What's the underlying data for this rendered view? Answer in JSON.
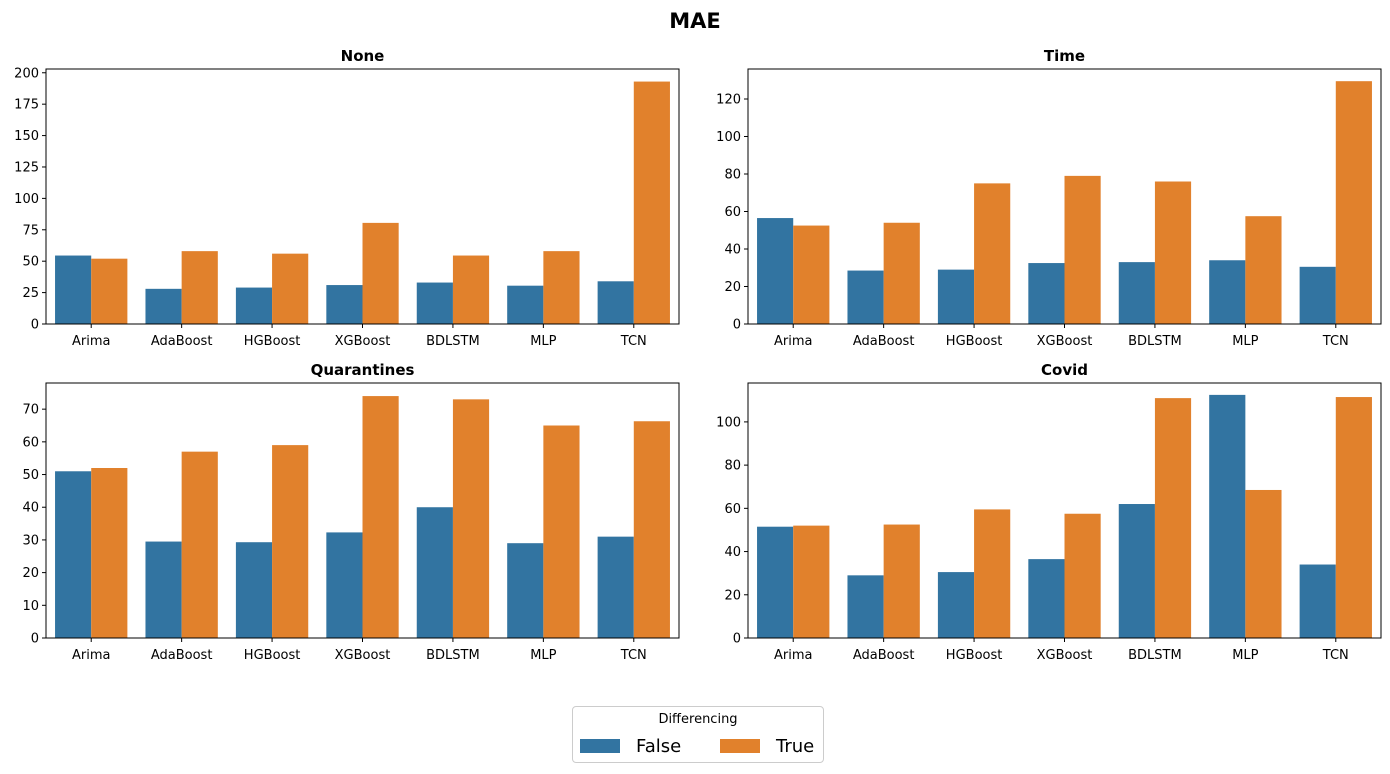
{
  "figure": {
    "title": "MAE"
  },
  "colors": {
    "false": "#3274a1",
    "true": "#e1812c"
  },
  "legend": {
    "title": "Differencing",
    "items": [
      {
        "label": "False"
      },
      {
        "label": "True"
      }
    ]
  },
  "chart_data": [
    {
      "type": "bar",
      "title": "None",
      "categories": [
        "Arima",
        "AdaBoost",
        "HGBoost",
        "XGBoost",
        "BDLSTM",
        "MLP",
        "TCN"
      ],
      "series": [
        {
          "name": "False",
          "values": [
            54.5,
            28,
            29,
            31,
            33,
            30.5,
            34
          ]
        },
        {
          "name": "True",
          "values": [
            52,
            58,
            56,
            80.5,
            54.5,
            58,
            193
          ]
        }
      ],
      "ylim": [
        0,
        203
      ],
      "yticks": [
        0,
        25,
        50,
        75,
        100,
        125,
        150,
        175,
        200
      ],
      "xlabel": "",
      "ylabel": ""
    },
    {
      "type": "bar",
      "title": "Time",
      "categories": [
        "Arima",
        "AdaBoost",
        "HGBoost",
        "XGBoost",
        "BDLSTM",
        "MLP",
        "TCN"
      ],
      "series": [
        {
          "name": "False",
          "values": [
            56.5,
            28.5,
            29,
            32.5,
            33,
            34,
            30.5
          ]
        },
        {
          "name": "True",
          "values": [
            52.5,
            54,
            75,
            79,
            76,
            57.5,
            129.5
          ]
        }
      ],
      "ylim": [
        0,
        136
      ],
      "yticks": [
        0,
        20,
        40,
        60,
        80,
        100,
        120
      ],
      "xlabel": "",
      "ylabel": ""
    },
    {
      "type": "bar",
      "title": "Quarantines",
      "categories": [
        "Arima",
        "AdaBoost",
        "HGBoost",
        "XGBoost",
        "BDLSTM",
        "MLP",
        "TCN"
      ],
      "series": [
        {
          "name": "False",
          "values": [
            51,
            29.5,
            29.3,
            32.3,
            40,
            29,
            31
          ]
        },
        {
          "name": "True",
          "values": [
            52,
            57,
            59,
            74,
            73,
            65,
            66.3
          ]
        }
      ],
      "ylim": [
        0,
        78
      ],
      "yticks": [
        0,
        10,
        20,
        30,
        40,
        50,
        60,
        70
      ],
      "xlabel": "",
      "ylabel": ""
    },
    {
      "type": "bar",
      "title": "Covid",
      "categories": [
        "Arima",
        "AdaBoost",
        "HGBoost",
        "XGBoost",
        "BDLSTM",
        "MLP",
        "TCN"
      ],
      "series": [
        {
          "name": "False",
          "values": [
            51.5,
            29,
            30.5,
            36.5,
            62,
            112.5,
            34
          ]
        },
        {
          "name": "True",
          "values": [
            52,
            52.5,
            59.5,
            57.5,
            111,
            68.5,
            111.5
          ]
        }
      ],
      "ylim": [
        0,
        118
      ],
      "yticks": [
        0,
        20,
        40,
        60,
        80,
        100
      ],
      "xlabel": "",
      "ylabel": ""
    }
  ]
}
